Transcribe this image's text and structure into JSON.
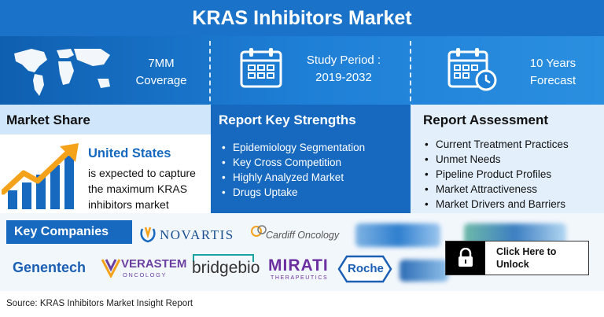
{
  "title": "KRAS Inhibitors Market",
  "top": {
    "coverage_line1": "7MM",
    "coverage_line2": "Coverage",
    "study_line1": "Study Period :",
    "study_line2": "2019-2032",
    "forecast_line1": "10 Years",
    "forecast_line2": "Forecast"
  },
  "market_share": {
    "heading": "Market Share",
    "country": "United States",
    "text_lines": [
      "is expected to capture",
      "the maximum KRAS",
      "inhibitors market"
    ]
  },
  "key_strengths": {
    "heading": "Report Key Strengths",
    "items": [
      "Epidemiology Segmentation",
      "Key Cross Competition",
      "Highly Analyzed Market",
      "Drugs Uptake"
    ]
  },
  "assessment": {
    "heading": "Report Assessment",
    "items": [
      "Current Treatment Practices",
      "Unmet Needs",
      "Pipeline Product Profiles",
      "Market Attractiveness",
      "Market Drivers and Barriers"
    ]
  },
  "companies": {
    "heading": "Key Companies",
    "novartis": "NOVARTIS",
    "cardiff": "Cardiff Oncology",
    "genentech": "Genentech",
    "verastem": "VERASTEM",
    "verastem_sub": "ONCOLOGY",
    "bridgebio": "bridgebio",
    "mirati": "MIRATI",
    "mirati_sub": "THERAPEUTICS",
    "roche": "Roche"
  },
  "unlock": {
    "line1": "Click Here to",
    "line2": "Unlock"
  },
  "source": "Source: KRAS Inhibitors Market Insight Report",
  "colors": {
    "primary_blue": "#1669bf",
    "title_blue": "#1a73c8",
    "light_blue": "#cfe6fb",
    "orange": "#f5a21b"
  }
}
